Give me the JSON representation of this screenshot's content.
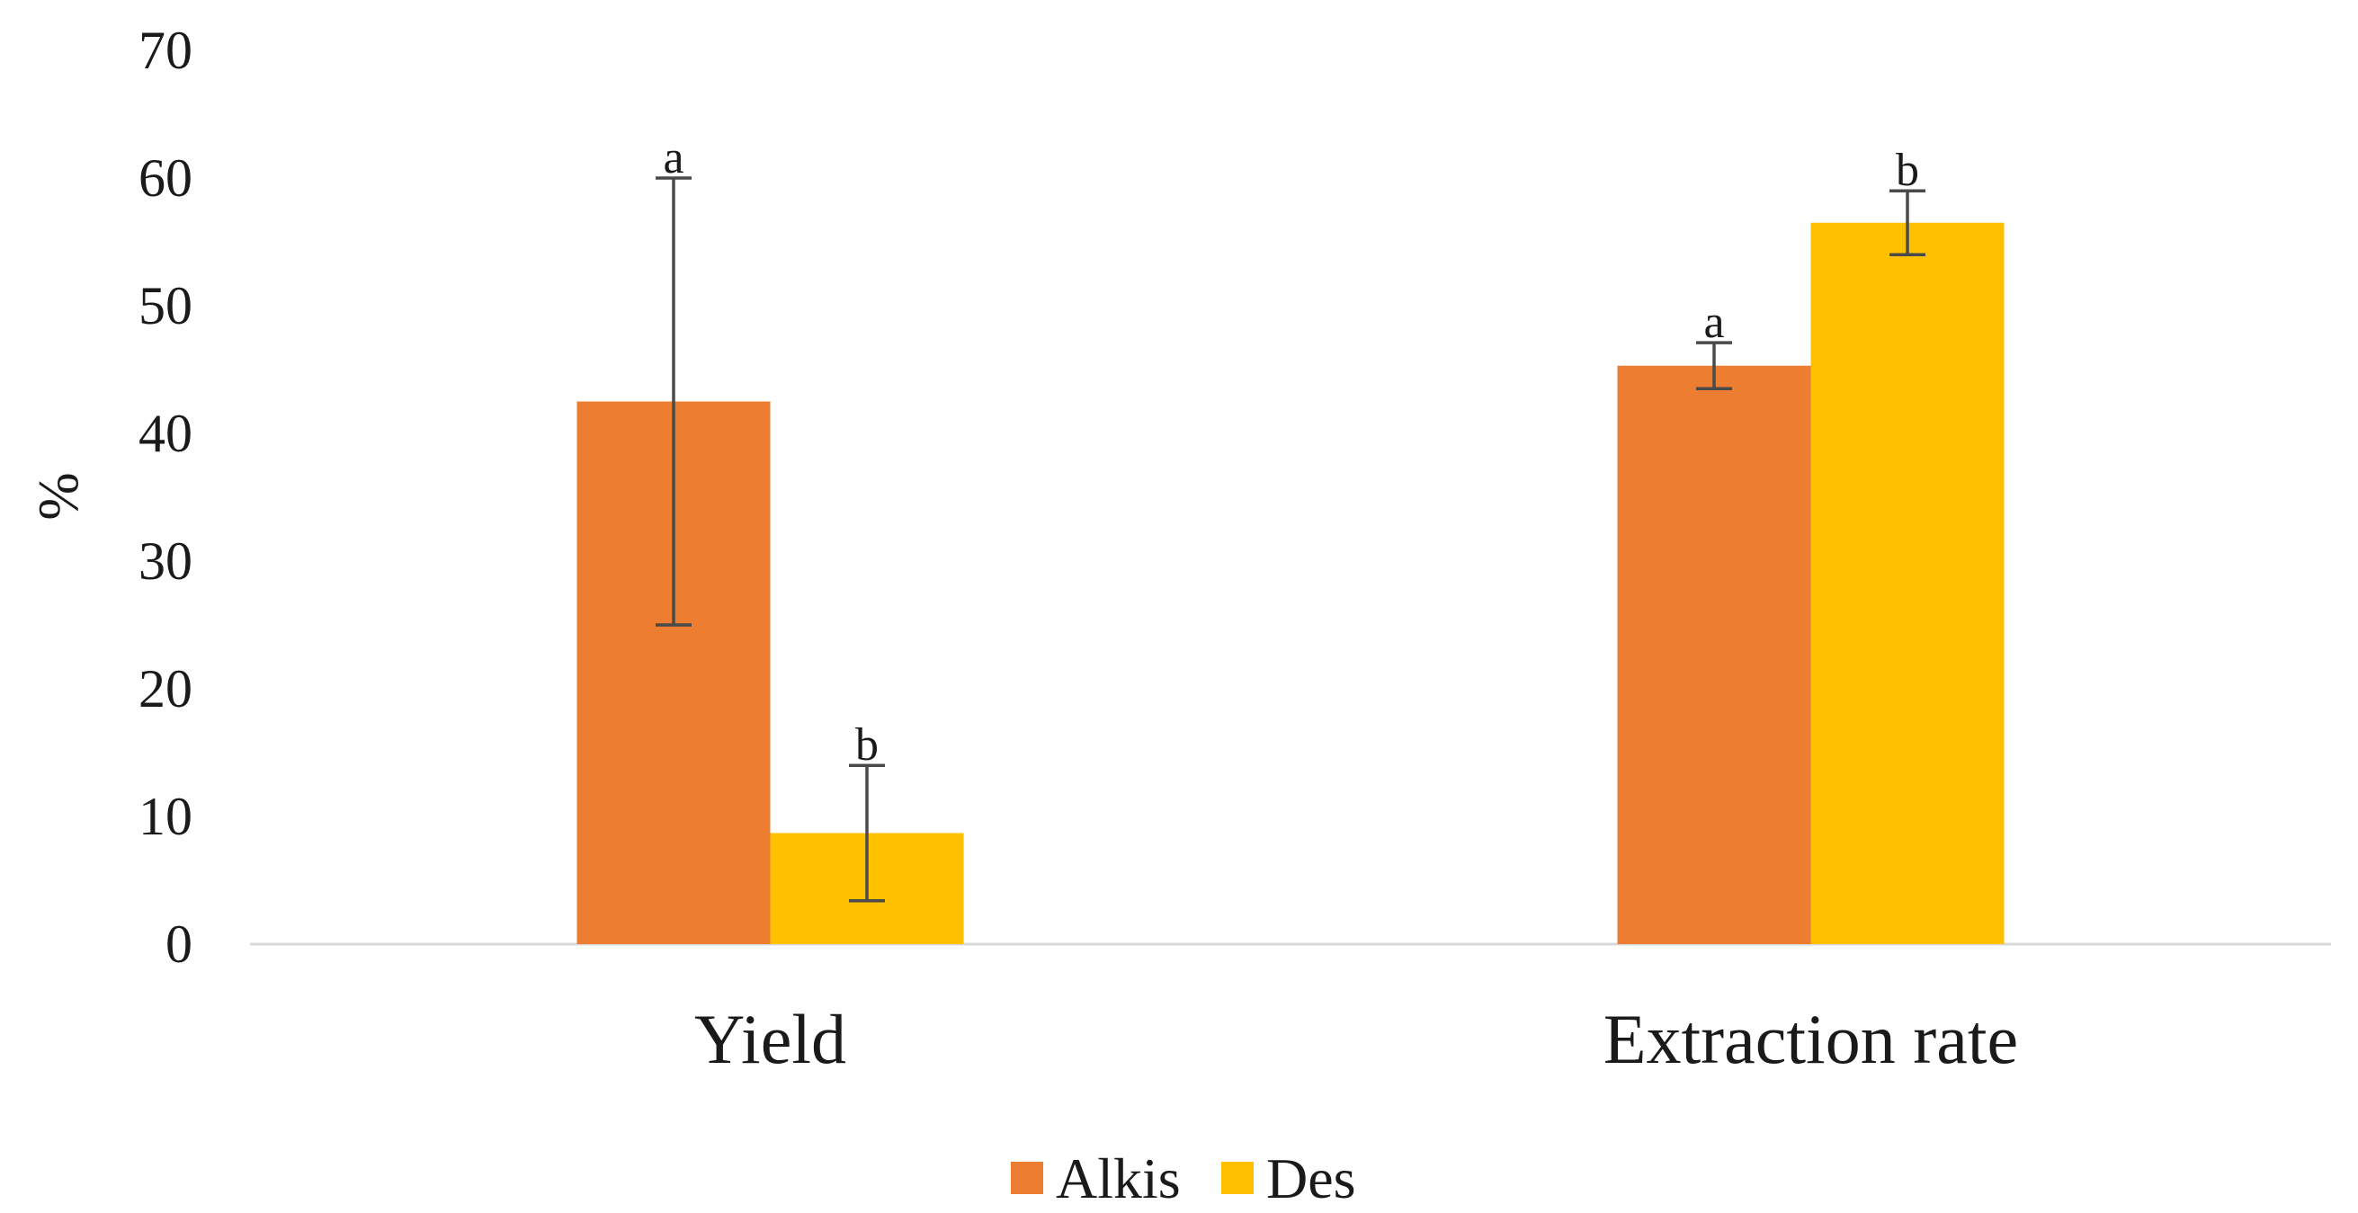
{
  "chart_data": {
    "type": "bar",
    "title": "",
    "xlabel": "",
    "ylabel": "%",
    "ylim": [
      0,
      70
    ],
    "yticks": [
      0,
      10,
      20,
      30,
      40,
      50,
      60,
      70
    ],
    "grid": false,
    "legend_position": "bottom",
    "categories": [
      "Yield",
      "Extraction rate"
    ],
    "series": [
      {
        "name": "Alkis",
        "color": "#ED7D31",
        "values": [
          42.5,
          45.3
        ],
        "error": [
          17.5,
          1.8
        ],
        "significance": [
          "a",
          "a"
        ]
      },
      {
        "name": "Des",
        "color": "#FFC000",
        "values": [
          8.7,
          56.5
        ],
        "error": [
          5.3,
          2.5
        ],
        "significance": [
          "b",
          "b"
        ]
      }
    ]
  }
}
